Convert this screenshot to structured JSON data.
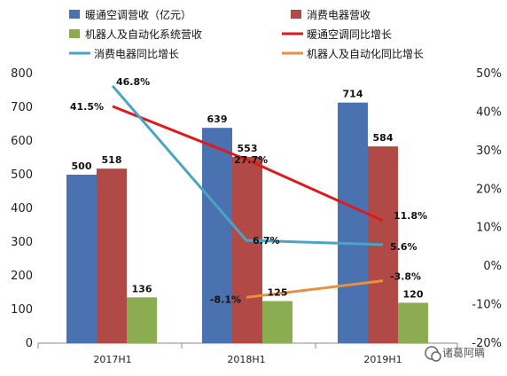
{
  "chart_data": {
    "type": "bar+line",
    "categories": [
      "2017H1",
      "2018H1",
      "2019H1"
    ],
    "bar_series": [
      {
        "name": "暖通空调营收（亿元）",
        "values": [
          500,
          639,
          714
        ],
        "color": "#4a72b0",
        "labels": [
          "500",
          "639",
          "714"
        ]
      },
      {
        "name": "消费电器营收",
        "values": [
          518,
          553,
          584
        ],
        "color": "#b14a47",
        "labels": [
          "518",
          "553",
          "584"
        ]
      },
      {
        "name": "机器人及自动化系统营收",
        "values": [
          136,
          125,
          120
        ],
        "color": "#8cac52",
        "labels": [
          "136",
          "125",
          "120"
        ]
      }
    ],
    "line_series": [
      {
        "name": "暖通空调同比增长",
        "values": [
          41.5,
          27.7,
          11.8
        ],
        "color": "#e0191b",
        "labels": [
          "41.5%",
          "27.7%",
          "11.8%"
        ]
      },
      {
        "name": "消费电器同比增长",
        "values": [
          46.8,
          6.7,
          5.6
        ],
        "color": "#4aa5c4",
        "labels": [
          "46.8%",
          "6.7%",
          "5.6%"
        ]
      },
      {
        "name": "机器人及自动化同比增长",
        "values": [
          null,
          -8.1,
          -3.8
        ],
        "color": "#e8913c",
        "labels": [
          "",
          "-8.1%",
          "-3.8%"
        ]
      }
    ],
    "y_left": {
      "min": 0,
      "max": 800,
      "ticks": [
        "0",
        "100",
        "200",
        "300",
        "400",
        "500",
        "600",
        "700",
        "800"
      ]
    },
    "y_right": {
      "min": -20,
      "max": 50,
      "ticks": [
        "-20%",
        "-10%",
        "0%",
        "10%",
        "20%",
        "30%",
        "40%",
        "50%"
      ]
    },
    "grid": false,
    "legend_position": "top"
  },
  "watermark": "诸葛阿瞒"
}
